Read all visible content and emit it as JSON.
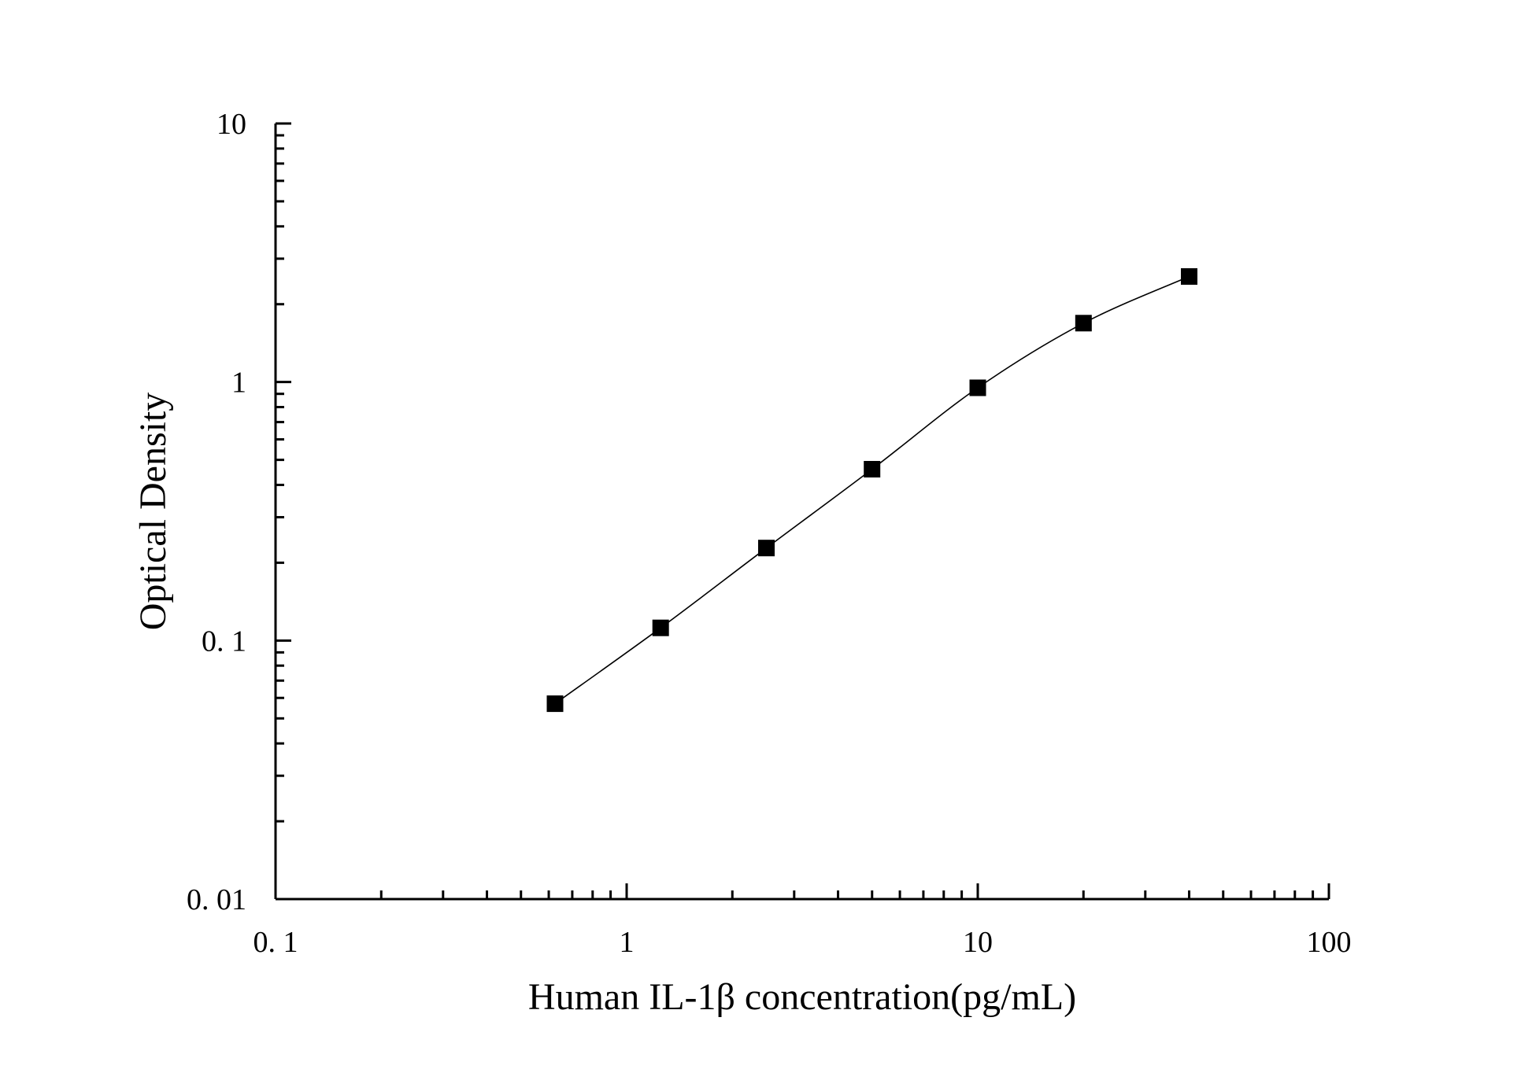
{
  "chart_data": {
    "type": "scatter",
    "title": "",
    "xlabel": "Human IL-1β concentration(pg/mL)",
    "ylabel": "Optical Density",
    "xscale": "log",
    "yscale": "log",
    "xlim": [
      0.1,
      100
    ],
    "ylim": [
      0.01,
      10
    ],
    "x_tick_values": [
      0.1,
      1,
      10,
      100
    ],
    "x_tick_labels": [
      "0. 1",
      "1",
      "10",
      "100"
    ],
    "y_tick_values": [
      0.01,
      0.1,
      1,
      10
    ],
    "y_tick_labels": [
      "0. 01",
      "0. 1",
      "1",
      "10"
    ],
    "grid": false,
    "legend": "none",
    "marker": "filled-square",
    "color": "#000000",
    "fit_line": "smooth curve through points",
    "series": [
      {
        "x": [
          0.625,
          1.25,
          2.5,
          5,
          10,
          20,
          40
        ],
        "y": [
          0.057,
          0.112,
          0.228,
          0.46,
          0.95,
          1.69,
          2.56
        ]
      }
    ]
  }
}
